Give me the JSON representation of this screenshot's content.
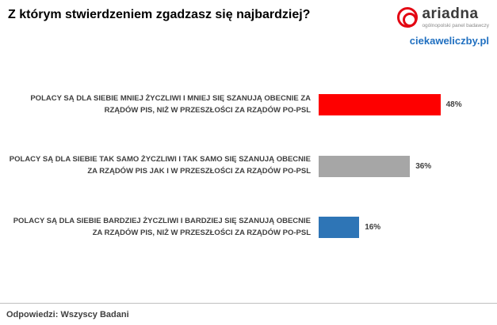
{
  "header": {
    "title": "Z którym stwierdzeniem zgadzasz się najbardziej?",
    "logo": {
      "brand": "ariadna",
      "subtitle": "ogólnopolski panel badawczy",
      "site": "ciekaweliczby.pl"
    }
  },
  "chart_data": {
    "type": "bar",
    "orientation": "horizontal",
    "title": "Z którym stwierdzeniem zgadzasz się najbardziej?",
    "categories": [
      "POLACY SĄ DLA SIEBIE MNIEJ ŻYCZLIWI I MNIEJ SIĘ SZANUJĄ OBECNIE ZA RZĄDÓW PIS, NIŻ W PRZESZŁOŚCI ZA RZĄDÓW PO-PSL",
      "POLACY SĄ DLA SIEBIE TAK SAMO ŻYCZLIWI I TAK SAMO SIĘ SZANUJĄ OBECNIE ZA RZĄDÓW PIS JAK I W PRZESZŁOŚCI ZA RZĄDÓW PO-PSL",
      "POLACY SĄ DLA SIEBIE BARDZIEJ ŻYCZLIWI I BARDZIEJ SIĘ SZANUJĄ OBECNIE ZA RZĄDÓW PIS, NIŻ W PRZESZŁOŚCI ZA RZĄDÓW PO-PSL"
    ],
    "values": [
      48,
      36,
      16
    ],
    "value_labels": [
      "48%",
      "36%",
      "16%"
    ],
    "colors": [
      "#fe0000",
      "#a6a6a6",
      "#2e75b6"
    ],
    "xlim": [
      0,
      50
    ],
    "grid": false,
    "legend": false
  },
  "footer": {
    "answers": "Odpowiedzi: Wszyscy Badani"
  }
}
